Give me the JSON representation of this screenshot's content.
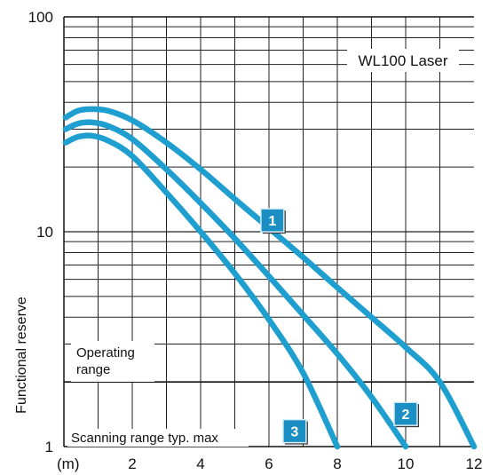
{
  "chart_data": {
    "type": "line",
    "title": "WL100 Laser",
    "xlabel": "(m)",
    "ylabel": "Functional reserve",
    "xlim": [
      0,
      12
    ],
    "ylim": [
      1,
      100
    ],
    "y_scale": "log",
    "grid": true,
    "x_ticks": [
      "2",
      "4",
      "6",
      "8",
      "10",
      "12"
    ],
    "y_ticks": [
      "1",
      "10",
      "100"
    ],
    "annotations": {
      "operating_range": "Operating\nrange",
      "operating_threshold": 2,
      "scanning_range": "Scanning range typ. max"
    },
    "line_color": "#1f9fd0",
    "badge_color": "#1b8fc4",
    "series": [
      {
        "badge": "1",
        "points": [
          [
            0.05,
            34
          ],
          [
            0.4,
            36.5
          ],
          [
            0.8,
            37.2
          ],
          [
            1.3,
            36.5
          ],
          [
            2,
            33
          ],
          [
            3,
            26
          ],
          [
            4,
            19.5
          ],
          [
            5,
            14.2
          ],
          [
            6,
            10.4
          ],
          [
            7,
            7.6
          ],
          [
            8,
            5.5
          ],
          [
            9,
            4.0
          ],
          [
            10,
            2.9
          ],
          [
            11,
            2.0
          ],
          [
            12,
            1.0
          ]
        ],
        "badge_at": [
          6.1,
          11.3
        ]
      },
      {
        "badge": "2",
        "points": [
          [
            0.05,
            30
          ],
          [
            0.4,
            31.8
          ],
          [
            0.8,
            32.3
          ],
          [
            1.3,
            31.0
          ],
          [
            2,
            27
          ],
          [
            3,
            19.5
          ],
          [
            4,
            13.6
          ],
          [
            5,
            9.3
          ],
          [
            6,
            6.2
          ],
          [
            7,
            4.1
          ],
          [
            8,
            2.7
          ],
          [
            9,
            1.7
          ],
          [
            10,
            1.0
          ]
        ],
        "badge_at": [
          10.0,
          1.42
        ]
      },
      {
        "badge": "3",
        "points": [
          [
            0.05,
            26
          ],
          [
            0.4,
            27.6
          ],
          [
            0.8,
            28.0
          ],
          [
            1.3,
            26.5
          ],
          [
            2,
            22.5
          ],
          [
            3,
            15.2
          ],
          [
            4,
            10.0
          ],
          [
            5,
            6.4
          ],
          [
            6,
            3.9
          ],
          [
            7,
            2.2
          ],
          [
            8,
            1.0
          ]
        ],
        "badge_at": [
          6.75,
          1.18
        ]
      }
    ]
  }
}
